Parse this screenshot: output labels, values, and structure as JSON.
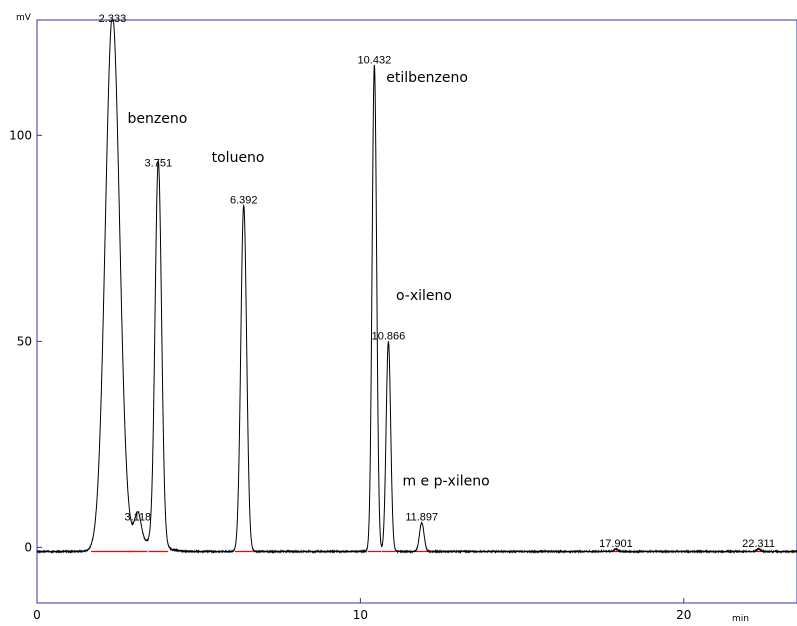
{
  "chart_data": {
    "type": "line",
    "xlabel": "min",
    "ylabel": "mV",
    "xlim": [
      0,
      23.5
    ],
    "ylim": [
      -13.5,
      128
    ],
    "x_ticks": [
      0,
      10,
      20
    ],
    "x_tick_labels": [
      "0",
      "10",
      "20"
    ],
    "y_ticks": [
      0,
      50,
      100
    ],
    "y_tick_labels": [
      "0",
      "50",
      "100"
    ],
    "grid": false,
    "baseline": -1,
    "colors": {
      "trace": "#000000",
      "baseline": "#ff0000",
      "frame": "#3333aa"
    },
    "series": [
      {
        "peaks": [
          {
            "rt": 2.333,
            "label": "2.333",
            "height": 128,
            "width": 0.22
          },
          {
            "rt": 3.118,
            "label": "3.118",
            "height": 7,
            "width": 0.1
          },
          {
            "rt": 3.751,
            "label": "3.751",
            "height": 93,
            "width": 0.1
          },
          {
            "rt": 6.392,
            "label": "6.392",
            "height": 84,
            "width": 0.09
          },
          {
            "rt": 10.432,
            "label": "10.432",
            "height": 118,
            "width": 0.07
          },
          {
            "rt": 10.866,
            "label": "10.866",
            "height": 51,
            "width": 0.07
          },
          {
            "rt": 11.897,
            "label": "11.897",
            "height": 7,
            "width": 0.07
          },
          {
            "rt": 17.901,
            "label": "17.901",
            "height": 0.6,
            "width": 0.06
          },
          {
            "rt": 22.311,
            "label": "22.311",
            "height": 0.6,
            "width": 0.06
          }
        ]
      }
    ],
    "annotations": [
      {
        "text": "benzeno",
        "x": 2.8,
        "y": 103
      },
      {
        "text": "tolueno",
        "x": 5.4,
        "y": 93.5
      },
      {
        "text": "etilbenzeno",
        "x": 10.8,
        "y": 113
      },
      {
        "text": "o-xileno",
        "x": 11.1,
        "y": 60
      },
      {
        "text": "m e p-xileno",
        "x": 11.3,
        "y": 15
      }
    ]
  }
}
